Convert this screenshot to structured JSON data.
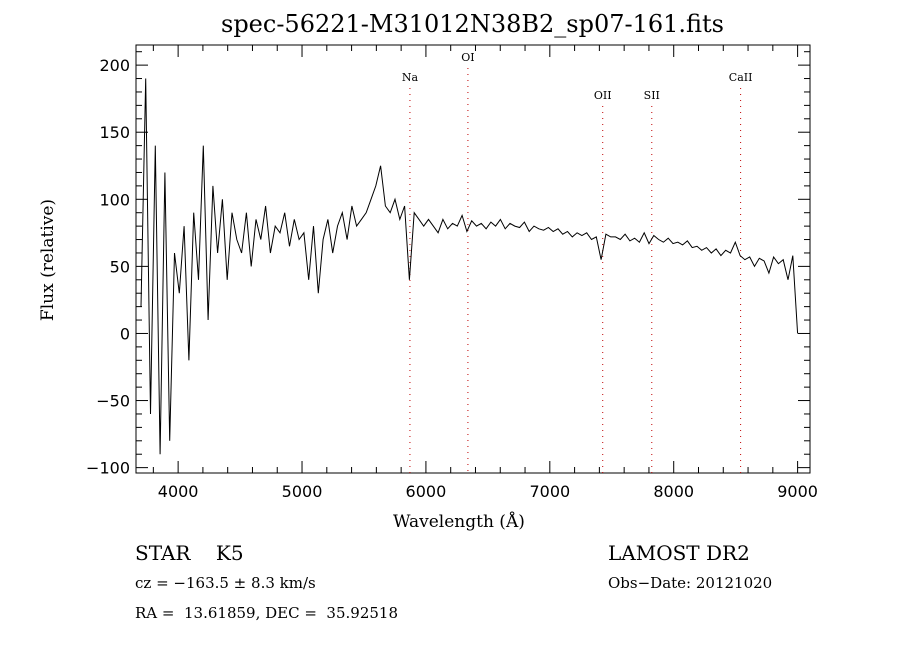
{
  "chart_data": {
    "type": "line",
    "title": "spec-56221-M31012N38B2_sp07-161.fits",
    "xlabel": "Wavelength (Å)",
    "ylabel": "Flux (relative)",
    "xlim": [
      3660,
      9100
    ],
    "ylim": [
      -104,
      215
    ],
    "xticks": [
      4000,
      5000,
      6000,
      7000,
      8000,
      9000
    ],
    "yticks": [
      -100,
      -50,
      0,
      50,
      100,
      150,
      200
    ],
    "grid": false,
    "wavelength_start": 3700,
    "wavelength_end": 9000,
    "flux": [
      20,
      190,
      -60,
      140,
      -90,
      120,
      -80,
      60,
      30,
      80,
      -20,
      90,
      40,
      140,
      10,
      110,
      60,
      100,
      40,
      90,
      70,
      60,
      90,
      50,
      85,
      70,
      95,
      60,
      80,
      75,
      90,
      65,
      85,
      70,
      75,
      40,
      80,
      30,
      70,
      85,
      60,
      80,
      90,
      70,
      95,
      80,
      85,
      90,
      100,
      110,
      125,
      95,
      90,
      100,
      85,
      95,
      40,
      90,
      85,
      80,
      85,
      80,
      75,
      85,
      78,
      82,
      80,
      88,
      76,
      84,
      80,
      82,
      78,
      83,
      80,
      85,
      78,
      82,
      80,
      79,
      83,
      76,
      80,
      78,
      77,
      79,
      76,
      78,
      74,
      76,
      72,
      75,
      73,
      75,
      70,
      72,
      55,
      74,
      72,
      72,
      70,
      74,
      69,
      71,
      68,
      75,
      67,
      73,
      70,
      68,
      71,
      67,
      68,
      66,
      69,
      64,
      65,
      62,
      64,
      60,
      63,
      58,
      62,
      60,
      68,
      58,
      55,
      57,
      50,
      56,
      54,
      45,
      57,
      52,
      55,
      40,
      58,
      0
    ],
    "lines": [
      {
        "label": "Na",
        "wavelength": 5871,
        "level": 1
      },
      {
        "label": "OI",
        "wavelength": 6339,
        "level": 0
      },
      {
        "label": "OII",
        "wavelength": 7427,
        "level": 2
      },
      {
        "label": "SII",
        "wavelength": 7823,
        "level": 2
      },
      {
        "label": "CaII",
        "wavelength": 8540,
        "level": 1
      }
    ],
    "line_color": "#c00000"
  },
  "info": {
    "class": "STAR    K5",
    "survey": "LAMOST DR2",
    "cz": "cz = −163.5 ± 8.3 km/s",
    "obs_date": "Obs−Date: 20121020",
    "coords": "RA =  13.61859, DEC =  35.92518"
  }
}
